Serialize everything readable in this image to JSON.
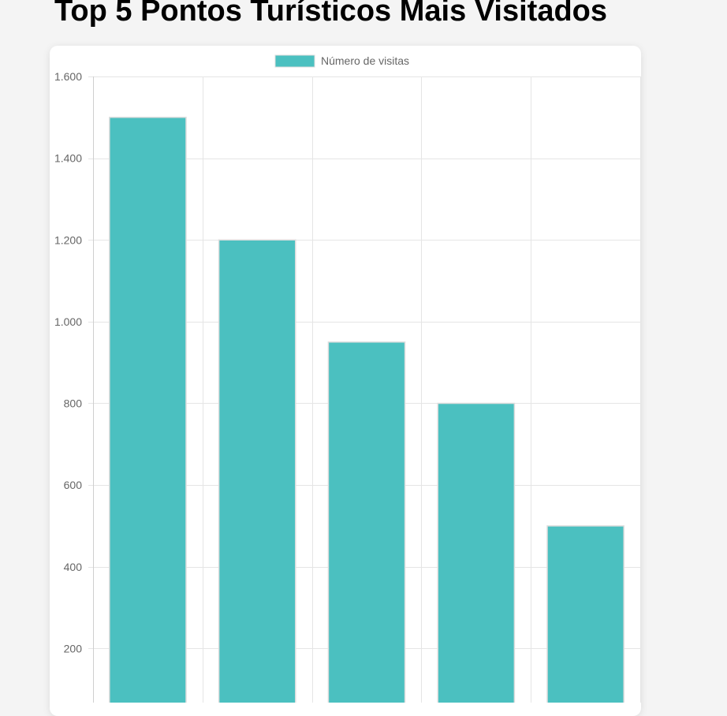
{
  "page": {
    "title": "Top 5 Pontos Turísticos Mais Visitados"
  },
  "colors": {
    "bar_fill": "#4bc0c0",
    "bar_border": "#dddddd",
    "grid": "#e5e5e5",
    "text": "#666666"
  },
  "chart_data": {
    "type": "bar",
    "title": "",
    "xlabel": "",
    "ylabel": "",
    "categories": [
      "",
      "",
      "",
      "",
      ""
    ],
    "series": [
      {
        "name": "Número de visitas",
        "values": [
          1500,
          1200,
          950,
          800,
          500
        ]
      }
    ],
    "ylim": [
      0,
      1600
    ],
    "yticks": [
      {
        "value": 200,
        "label": "200"
      },
      {
        "value": 400,
        "label": "400"
      },
      {
        "value": 600,
        "label": "600"
      },
      {
        "value": 800,
        "label": "800"
      },
      {
        "value": 1000,
        "label": "1.000"
      },
      {
        "value": 1200,
        "label": "1.200"
      },
      {
        "value": 1400,
        "label": "1.400"
      },
      {
        "value": 1600,
        "label": "1.600"
      }
    ],
    "grid": true,
    "legend_position": "top-center"
  }
}
